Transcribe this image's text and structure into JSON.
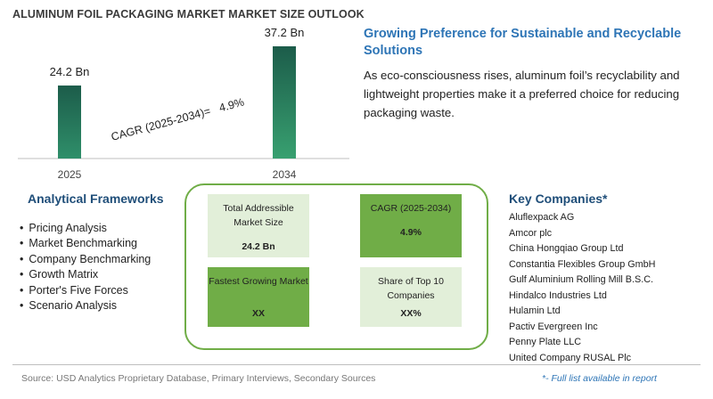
{
  "title": "ALUMINUM FOIL PACKAGING MARKET MARKET SIZE OUTLOOK",
  "chart_data": {
    "type": "bar",
    "categories": [
      "2025",
      "2034"
    ],
    "values": [
      24.2,
      37.2
    ],
    "value_labels": [
      "24.2 Bn",
      "37.2 Bn"
    ],
    "annotation": "CAGR (2025-2034)=   4.9%",
    "bar_colors": [
      "#1c5c4a",
      "#2f8f6a"
    ]
  },
  "insight": {
    "heading": "Growing Preference for Sustainable and Recyclable Solutions",
    "text": "As eco-consciousness rises, aluminum foil’s recyclability and lightweight properties make it a preferred choice for reducing packaging waste."
  },
  "frameworks": {
    "title": "Analytical Frameworks",
    "items": [
      "Pricing Analysis",
      "Market Benchmarking",
      "Company Benchmarking",
      "Growth Matrix",
      "Porter's Five Forces",
      "Scenario Analysis"
    ]
  },
  "kpis": {
    "tam": {
      "label": "Total Addressible Market Size",
      "value": "24.2 Bn"
    },
    "cagr": {
      "label": "CAGR (2025-2034)",
      "value": "4.9%"
    },
    "fastest": {
      "label": "Fastest Growing Market",
      "value": "XX"
    },
    "share": {
      "label": "Share of Top 10 Companies",
      "value": "XX%"
    }
  },
  "companies": {
    "title": "Key Companies*",
    "items": [
      "Aluflexpack AG",
      "Amcor plc",
      "China Hongqiao Group Ltd",
      "Constantia Flexibles Group GmbH",
      "Gulf Aluminium Rolling Mill B.S.C.",
      "Hindalco Industries Ltd",
      "Hulamin Ltd",
      "Pactiv Evergreen Inc",
      "Penny Plate LLC",
      "United Company RUSAL Plc"
    ]
  },
  "footer": {
    "source": "Source: USD Analytics Proprietary Database, Primary Interviews, Secondary Sources",
    "note": "*- Full list available in report"
  },
  "colors": {
    "accent_blue": "#2e75b6",
    "navy": "#1f4e79",
    "green": "#70ad47",
    "light_green": "#e2efd9"
  }
}
